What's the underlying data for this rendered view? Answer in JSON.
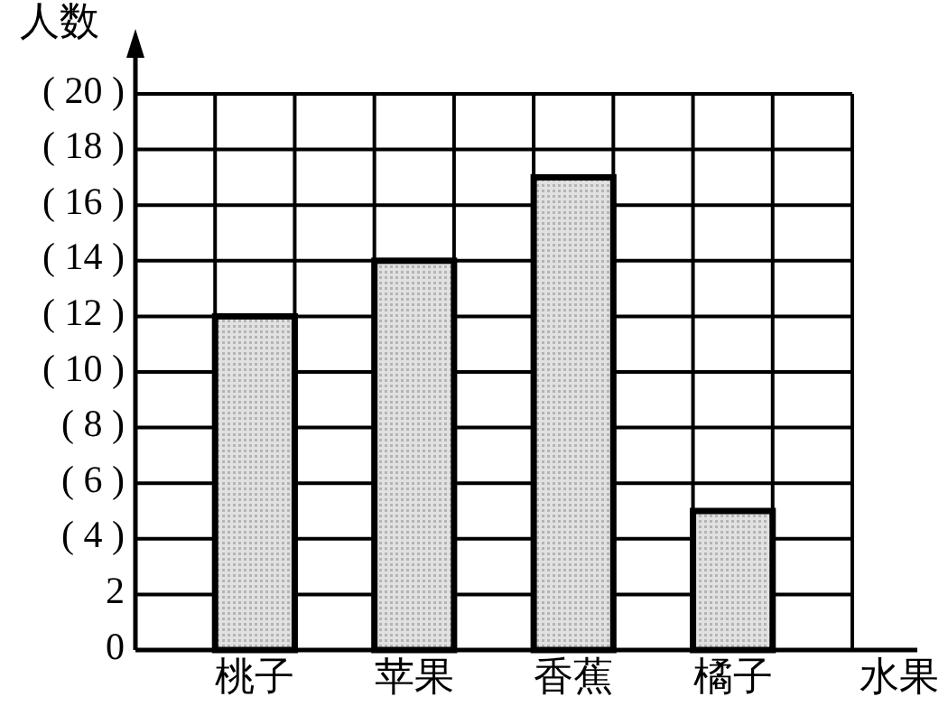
{
  "chart_data": {
    "type": "bar",
    "xlabel": "水果",
    "ylabel": "人数",
    "categories": [
      "桃子",
      "苹果",
      "香蕉",
      "橘子"
    ],
    "values": [
      12,
      14,
      17,
      5
    ],
    "color": "#b4b4b4",
    "ylim": [
      0,
      20
    ],
    "yticks": [
      0,
      2,
      {
        "value": 4,
        "label": "( 4 )"
      },
      {
        "value": 6,
        "label": "( 6 )"
      },
      {
        "value": 8,
        "label": "( 8 )"
      },
      {
        "value": 10,
        "label": "( 10 )"
      },
      {
        "value": 12,
        "label": "( 12 )"
      },
      {
        "value": 14,
        "label": "( 14 )"
      },
      {
        "value": 16,
        "label": "( 16 )"
      },
      {
        "value": 18,
        "label": "( 18 )"
      },
      {
        "value": 20,
        "label": "( 20 )"
      }
    ],
    "grid": true
  }
}
